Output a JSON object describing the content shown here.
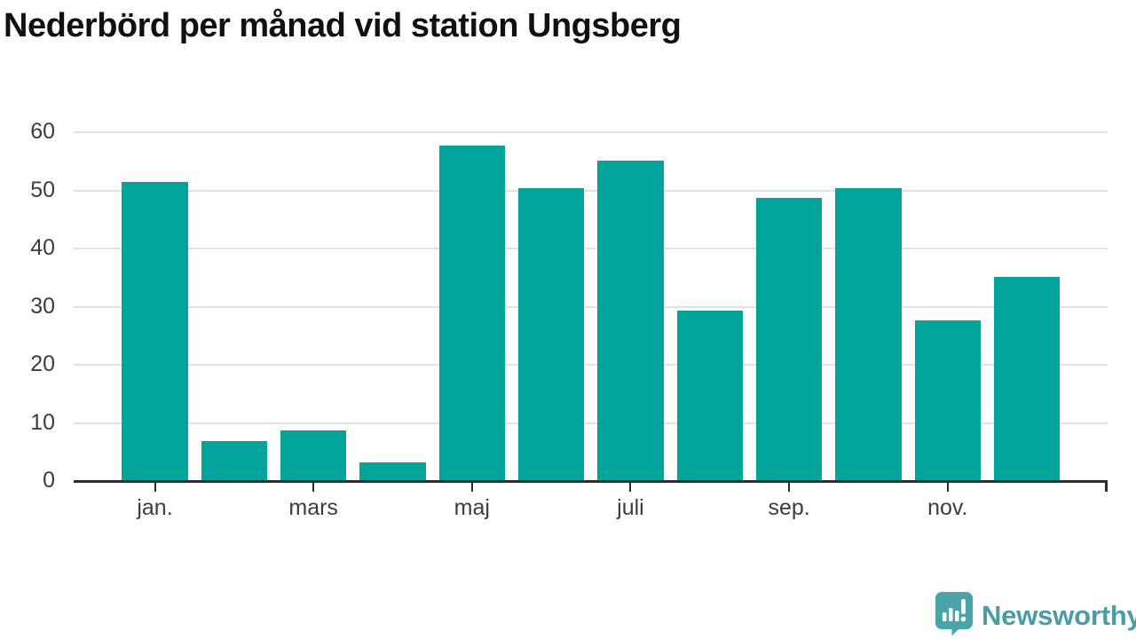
{
  "title": "Nederbörd per månad vid station Ungsberg",
  "chart_data": {
    "type": "bar",
    "x": [
      1,
      2,
      3,
      4,
      5,
      6,
      7,
      8,
      9,
      10,
      11,
      12
    ],
    "values": [
      51.5,
      6.9,
      8.7,
      3.2,
      57.8,
      50.5,
      55.2,
      29.4,
      48.7,
      50.4,
      27.6,
      35.1
    ],
    "title": "Nederbörd per månad vid station Ungsberg",
    "xlabel": "",
    "ylabel": "",
    "ylim": [
      0,
      60
    ],
    "yticks": [
      0,
      10,
      20,
      30,
      40,
      50,
      60
    ],
    "xticks": {
      "positions": [
        1,
        3,
        5,
        7,
        9,
        11
      ],
      "labels": [
        "jan.",
        "mars",
        "maj",
        "juli",
        "sep.",
        "nov."
      ]
    },
    "bar_color": "#00a49a",
    "grid": true,
    "gridline_color": "#e2e2e2",
    "axis_color": "#2e2e2e",
    "legend": "none"
  },
  "branding": {
    "logo_text": "Newsworthy",
    "logo_text_color": "#4a9da1",
    "logo_icon": "newsworthy-speech-bubble-chart-icon",
    "logo_icon_color": "#4aa3a6"
  }
}
